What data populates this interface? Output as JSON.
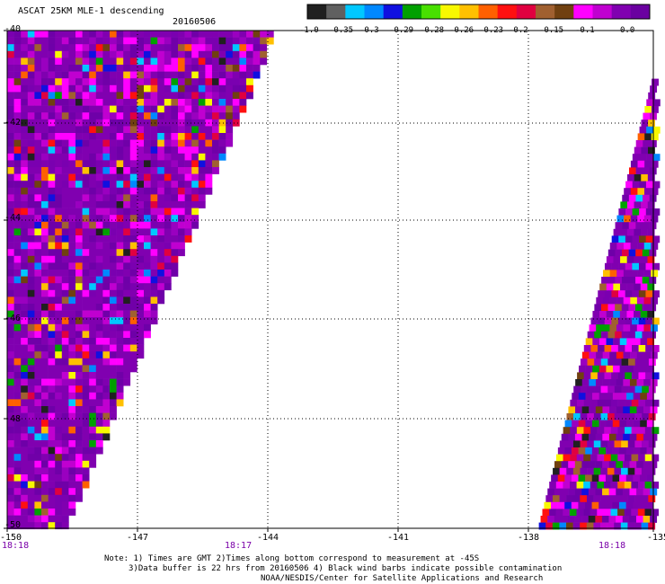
{
  "header": {
    "title": "ASCAT 25KM MLE-1 descending",
    "date": "20160506"
  },
  "colorbar": {
    "colors": [
      "#202020",
      "#606060",
      "#00c8ff",
      "#0088ff",
      "#1010e0",
      "#00a000",
      "#48e000",
      "#f8f800",
      "#ffc000",
      "#ff6000",
      "#ff1010",
      "#e00040",
      "#a06030",
      "#704010",
      "#ff00ff",
      "#c000d0",
      "#8000b0",
      "#6a00a0"
    ],
    "labels": [
      "-1.0",
      "-0.35",
      "-0.3",
      "-0.29",
      "-0.28",
      "-0.26",
      "-0.23",
      "-0.2",
      "-0.15",
      "-0.1",
      "0.0"
    ]
  },
  "map": {
    "lon_labels": [
      "-150",
      "-147",
      "-144",
      "-141",
      "-138",
      "-135"
    ],
    "lat_labels": [
      "-40",
      "-42",
      "-44",
      "-46",
      "-48",
      "-50"
    ],
    "lon_range": [
      -150,
      -135
    ],
    "lat_range": [
      -40,
      -50
    ],
    "time_labels": [
      "18:18",
      "18:17",
      "18:18"
    ]
  },
  "notes": {
    "line1": "Note: 1) Times are GMT 2)Times along bottom correspond to measurement at -45S",
    "line2": "3)Data buffer is 22 hrs from 20160506 4) Black wind barbs indicate possible contamination",
    "line3": "NOAA/NESDIS/Center for Satellite Applications and Research"
  }
}
